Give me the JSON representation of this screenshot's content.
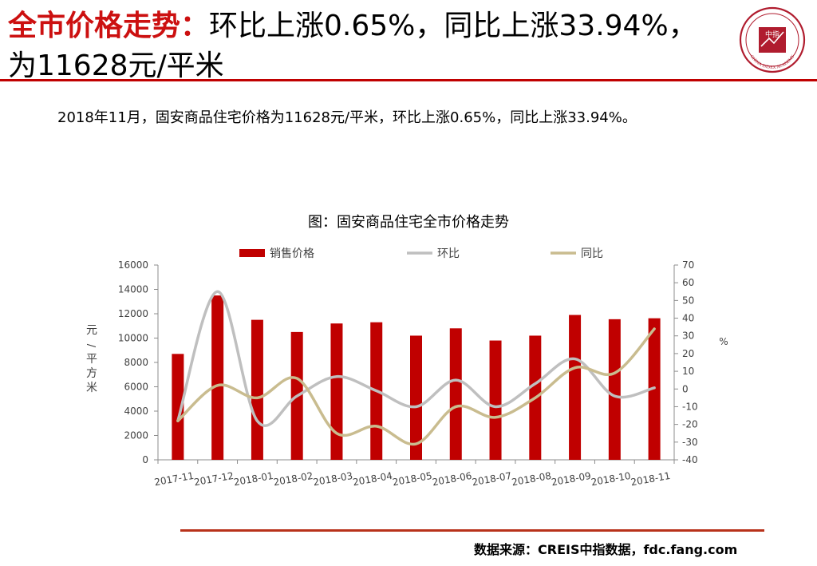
{
  "header": {
    "title_accent": "全市价格走势：",
    "title_rest": "环比上涨0.65%，同比上涨33.94%，为11628元/平米"
  },
  "logo": {
    "center_text": "中指",
    "arc_text": "CHINA INDEX ACADEMY",
    "accent_color": "#b01c2e"
  },
  "summary": "2018年11月，固安商品住宅价格为11628元/平米，环比上涨0.65%，同比上涨33.94%。",
  "chart_title": "图：固安商品住宅全市价格走势",
  "source": "数据来源：CREIS中指数据，fdc.fang.com",
  "colors": {
    "brand_red": "#cc1010",
    "bar": "#c00000",
    "mom_line": "#bfbfbf",
    "yoy_line": "#c9bc8f"
  },
  "chart_data": {
    "type": "bar",
    "categories": [
      "2017-11",
      "2017-12",
      "2018-01",
      "2018-02",
      "2018-03",
      "2018-04",
      "2018-05",
      "2018-06",
      "2018-07",
      "2018-08",
      "2018-09",
      "2018-10",
      "2018-11"
    ],
    "series": [
      {
        "name": "销售价格",
        "type": "bar",
        "axis": "left",
        "values": [
          8700,
          13500,
          11500,
          10500,
          11200,
          11300,
          10200,
          10800,
          9800,
          10200,
          11900,
          11550,
          11628
        ]
      },
      {
        "name": "环比",
        "type": "line",
        "axis": "right",
        "values": [
          -18,
          55,
          -18,
          -4,
          7,
          -1,
          -10,
          5,
          -10,
          3,
          17,
          -4,
          0.65
        ]
      },
      {
        "name": "同比",
        "type": "line",
        "axis": "right",
        "values": [
          -18,
          2,
          -5,
          6,
          -25,
          -21,
          -31,
          -10,
          -16,
          -5,
          12,
          9,
          33.94
        ]
      }
    ],
    "ylabel": "元/平方米",
    "y2label": "%",
    "ylim": [
      0,
      16000
    ],
    "yticks": [
      0,
      2000,
      4000,
      6000,
      8000,
      10000,
      12000,
      14000,
      16000
    ],
    "y2lim": [
      -40,
      70
    ],
    "y2ticks": [
      -40,
      -30,
      -20,
      -10,
      0,
      10,
      20,
      30,
      40,
      50,
      60,
      70
    ],
    "grid": false,
    "legend": "top-center"
  }
}
